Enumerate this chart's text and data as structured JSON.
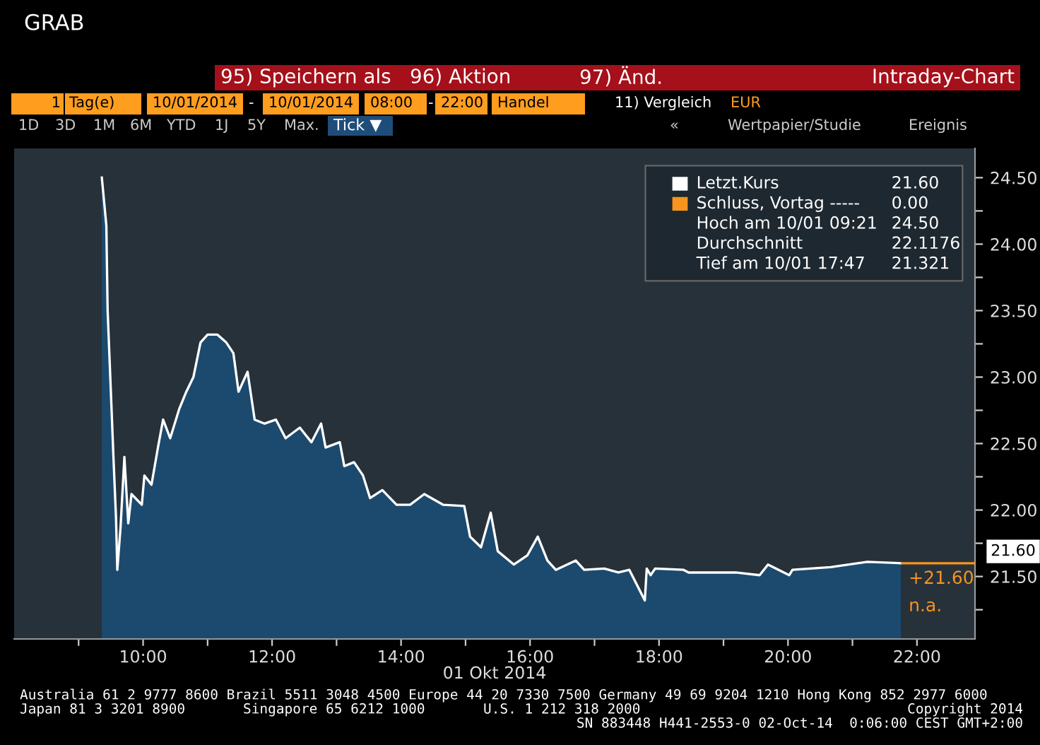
{
  "chart_data": {
    "type": "area",
    "title": "GRAB",
    "xlabel": "01 Okt 2014",
    "xlim": [
      8.0,
      22.9
    ],
    "ylim": [
      21.03,
      24.72
    ],
    "xticks": [
      {
        "value": 9,
        "label": null
      },
      {
        "value": 10,
        "label": "10:00"
      },
      {
        "value": 11,
        "label": null
      },
      {
        "value": 12,
        "label": "12:00"
      },
      {
        "value": 13,
        "label": null
      },
      {
        "value": 14,
        "label": "14:00"
      },
      {
        "value": 15,
        "label": null
      },
      {
        "value": 16,
        "label": "16:00"
      },
      {
        "value": 17,
        "label": null
      },
      {
        "value": 18,
        "label": "18:00"
      },
      {
        "value": 19,
        "label": null
      },
      {
        "value": 20,
        "label": "20:00"
      },
      {
        "value": 21,
        "label": null
      },
      {
        "value": 22,
        "label": "22:00"
      }
    ],
    "yticks": [
      {
        "value": 21.25,
        "label": null
      },
      {
        "value": 21.5,
        "label": "21.50"
      },
      {
        "value": 21.75,
        "label": null
      },
      {
        "value": 22.0,
        "label": "22.00"
      },
      {
        "value": 22.25,
        "label": null
      },
      {
        "value": 22.5,
        "label": "22.50"
      },
      {
        "value": 22.75,
        "label": null
      },
      {
        "value": 23.0,
        "label": "23.00"
      },
      {
        "value": 23.25,
        "label": null
      },
      {
        "value": 23.5,
        "label": "23.50"
      },
      {
        "value": 23.75,
        "label": null
      },
      {
        "value": 24.0,
        "label": "24.00"
      },
      {
        "value": 24.25,
        "label": null
      },
      {
        "value": 24.5,
        "label": "24.50"
      }
    ],
    "series": [
      {
        "name": "Letzt.Kurs",
        "color": "#ffffff",
        "x": [
          9.36,
          9.43,
          9.45,
          9.5,
          9.54,
          9.58,
          9.6,
          9.65,
          9.71,
          9.77,
          9.82,
          9.98,
          10.02,
          10.13,
          10.23,
          10.31,
          10.42,
          10.56,
          10.67,
          10.78,
          10.89,
          11.0,
          11.15,
          11.29,
          11.4,
          11.48,
          11.62,
          11.73,
          11.88,
          12.06,
          12.21,
          12.43,
          12.61,
          12.76,
          12.83,
          13.05,
          13.12,
          13.27,
          13.41,
          13.52,
          13.71,
          13.93,
          14.14,
          14.36,
          14.65,
          14.98,
          15.07,
          15.24,
          15.39,
          15.5,
          15.75,
          15.96,
          16.12,
          16.27,
          16.4,
          16.71,
          16.84,
          17.15,
          17.37,
          17.54,
          17.78,
          17.81,
          17.87,
          17.94,
          18.38,
          18.46,
          18.75,
          19.19,
          19.56,
          19.69,
          20.02,
          20.07,
          20.66,
          21.23,
          21.75
        ],
        "values": [
          24.5,
          24.14,
          23.5,
          22.89,
          22.4,
          21.94,
          21.55,
          21.87,
          22.4,
          21.9,
          22.12,
          22.04,
          22.26,
          22.19,
          22.47,
          22.68,
          22.54,
          22.76,
          22.89,
          23.0,
          23.26,
          23.32,
          23.32,
          23.26,
          23.18,
          22.89,
          23.04,
          22.68,
          22.65,
          22.68,
          22.54,
          22.62,
          22.51,
          22.65,
          22.47,
          22.51,
          22.33,
          22.36,
          22.26,
          22.09,
          22.15,
          22.04,
          22.04,
          22.12,
          22.04,
          22.03,
          21.8,
          21.72,
          21.98,
          21.69,
          21.59,
          21.66,
          21.8,
          21.62,
          21.55,
          21.62,
          21.55,
          21.56,
          21.53,
          21.55,
          21.32,
          21.56,
          21.51,
          21.56,
          21.55,
          21.53,
          21.53,
          21.53,
          21.51,
          21.59,
          21.51,
          21.55,
          21.57,
          21.61,
          21.6
        ]
      }
    ],
    "ref_lines": [
      {
        "axis": "y",
        "value": 21.6,
        "label": "21.60",
        "color": "#f7941d"
      }
    ],
    "legend": "top right",
    "annotations": [
      "+21.60",
      "n.a.",
      "21.60",
      "Schluss, Vortag -----",
      "0.00",
      "Hoch am 10/01 09:21",
      "24.50",
      "Durchschnitt",
      "22.1176",
      "Tief am 10/01 17:47",
      "21.321",
      "95) Speichern als",
      "96) Aktion",
      "97) Änd.",
      "Intraday-Chart",
      "1",
      "Tag(e)",
      "10/01/2014",
      "-",
      "10/01/2014",
      "08:00",
      "-",
      "22:00",
      "Handel",
      "11) Vergleich",
      "EUR",
      "1D",
      "3D",
      "1M",
      "6M",
      "YTD",
      "1J",
      "5Y",
      "Max.",
      "Tick ▼",
      "«",
      "Wertpapier/Studie",
      "Ereignis",
      "Australia 61 2 9777 8600 Brazil 5511 3048 4500 Europe 44 20 7330 7500 Germany 49 69 9204 1210 Hong Kong 852 2977 6000",
      "Japan 81 3 3201 8900",
      "Singapore 65 6212 1000",
      "U.S. 1 212 318 2000",
      "Copyright 2014",
      "SN 883448 H441-2553-0 02-Oct-14  0:06:00 CEST GMT+2:00"
    ]
  }
}
